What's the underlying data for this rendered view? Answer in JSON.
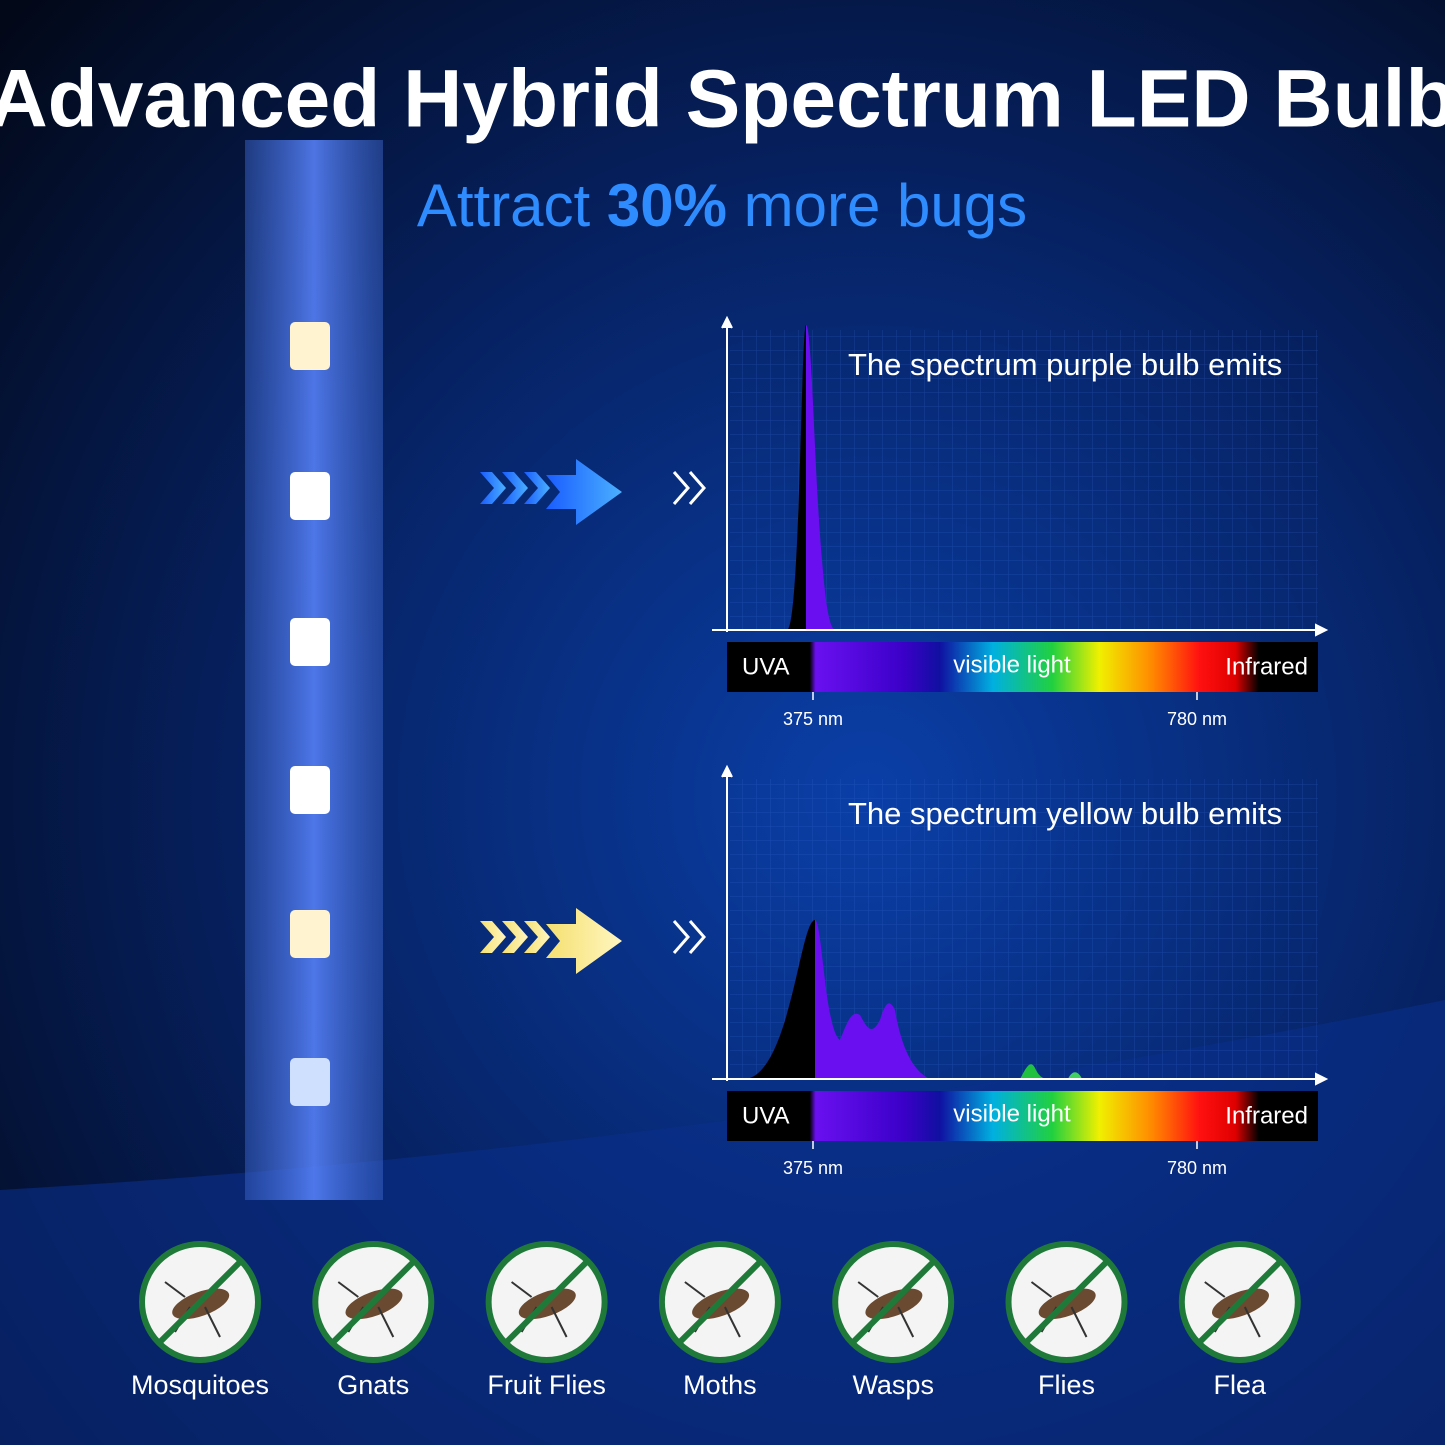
{
  "header": {
    "title": "Advanced Hybrid Spectrum LED Bulb",
    "subtitle": {
      "before": "Attract",
      "highlight": "30%",
      "after": "more bugs"
    }
  },
  "panels": [
    {
      "title": "The spectrum purple bulb emits",
      "bands": [
        "UVA",
        "visible light",
        "Infrared"
      ],
      "ticks": [
        "375 nm",
        "780 nm"
      ]
    },
    {
      "title": "The spectrum yellow bulb emits",
      "bands": [
        "UVA",
        "visible light",
        "Infrared"
      ],
      "ticks": [
        "375 nm",
        "780 nm"
      ]
    }
  ],
  "bugs": [
    "Mosquitoes",
    "Gnats",
    "Fruit Flies",
    "Moths",
    "Wasps",
    "Flies",
    "Flea"
  ]
}
